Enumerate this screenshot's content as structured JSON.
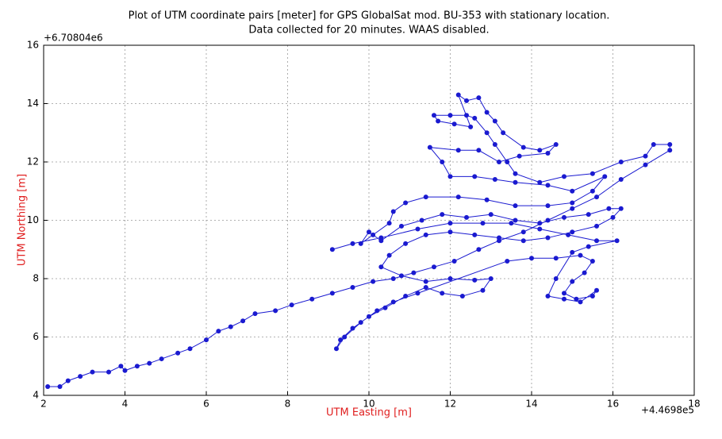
{
  "chart_data": {
    "type": "line",
    "title": "Plot of UTM  coordinate pairs [meter] for GPS GlobalSat mod. BU-353 with stationary location.",
    "subtitle": "Data collected for 20 minutes. WAAS disabled.",
    "x_label": "UTM Easting [m]",
    "y_label": "UTM Northing [m]",
    "x_offset_label": "+4.4698e5",
    "y_offset_label": "+6.70804e6",
    "color": "#1a1ad0",
    "grid": true,
    "xlim": [
      2,
      18
    ],
    "ylim": [
      4,
      16
    ],
    "xticks": [
      2,
      4,
      6,
      8,
      10,
      12,
      14,
      16,
      18
    ],
    "yticks": [
      4,
      6,
      8,
      10,
      12,
      14,
      16
    ],
    "x": [
      2.1,
      2.4,
      2.6,
      2.9,
      3.2,
      3.6,
      3.9,
      4.0,
      4.3,
      4.6,
      4.9,
      5.3,
      5.6,
      6.0,
      6.3,
      6.6,
      6.9,
      7.2,
      7.7,
      8.1,
      8.6,
      9.1,
      9.6,
      10.1,
      10.6,
      11.1,
      11.6,
      12.1,
      12.7,
      13.2,
      13.8,
      14.4,
      15.0,
      15.6,
      16.2,
      16.8,
      17.4,
      17.4,
      17.0,
      16.8,
      16.2,
      15.5,
      14.8,
      14.2,
      13.6,
      13.4,
      13.1,
      12.9,
      12.6,
      12.4,
      12.0,
      11.6,
      11.7,
      12.1,
      12.5,
      12.2,
      12.4,
      12.7,
      12.9,
      13.1,
      13.3,
      13.8,
      14.2,
      14.6,
      14.4,
      13.7,
      13.2,
      12.7,
      12.2,
      11.5,
      11.8,
      12.0,
      12.6,
      13.1,
      13.6,
      14.4,
      15.0,
      15.8,
      15.5,
      15.0,
      14.4,
      13.6,
      12.9,
      12.2,
      11.4,
      10.9,
      10.6,
      10.5,
      10.1,
      9.8,
      10.0,
      10.3,
      10.8,
      11.3,
      11.8,
      12.4,
      13.0,
      13.6,
      14.2,
      14.8,
      15.4,
      15.9,
      16.2,
      16.0,
      15.6,
      15.0,
      14.4,
      13.8,
      13.2,
      12.6,
      12.0,
      11.4,
      10.9,
      10.5,
      10.3,
      10.8,
      11.4,
      12.0,
      12.6,
      13.0,
      12.8,
      12.3,
      11.8,
      11.4,
      10.9,
      10.4,
      10.0,
      9.6,
      9.3,
      9.2,
      9.4,
      9.8,
      10.2,
      10.6,
      11.2,
      13.4,
      14.0,
      14.6,
      15.2,
      15.5,
      15.3,
      15.0,
      14.8,
      15.1,
      15.5,
      15.6,
      15.2,
      14.8,
      14.4,
      14.6,
      15.0,
      15.4,
      16.1,
      15.6,
      14.9,
      14.2,
      13.5,
      12.8,
      12.0,
      11.2,
      10.3,
      9.6,
      9.1
    ],
    "values": [
      4.3,
      4.3,
      4.5,
      4.65,
      4.8,
      4.8,
      5.0,
      4.85,
      5.0,
      5.1,
      5.25,
      5.45,
      5.6,
      5.9,
      6.2,
      6.35,
      6.55,
      6.8,
      6.9,
      7.1,
      7.3,
      7.5,
      7.7,
      7.9,
      8.0,
      8.2,
      8.4,
      8.6,
      9.0,
      9.3,
      9.6,
      10.0,
      10.4,
      10.8,
      11.4,
      11.9,
      12.4,
      12.6,
      12.6,
      12.2,
      12.0,
      11.6,
      11.5,
      11.3,
      11.6,
      12.0,
      12.6,
      13.0,
      13.5,
      13.6,
      13.6,
      13.6,
      13.4,
      13.3,
      13.2,
      14.3,
      14.1,
      14.2,
      13.7,
      13.4,
      13.0,
      12.5,
      12.4,
      12.6,
      12.3,
      12.2,
      12.0,
      12.4,
      12.4,
      12.5,
      12.0,
      11.5,
      11.5,
      11.4,
      11.3,
      11.2,
      11.0,
      11.5,
      11.0,
      10.6,
      10.5,
      10.5,
      10.7,
      10.8,
      10.8,
      10.6,
      10.3,
      9.9,
      9.5,
      9.2,
      9.6,
      9.3,
      9.8,
      10.0,
      10.2,
      10.1,
      10.2,
      10.0,
      9.9,
      10.1,
      10.2,
      10.4,
      10.4,
      10.1,
      9.8,
      9.6,
      9.4,
      9.3,
      9.4,
      9.5,
      9.6,
      9.5,
      9.2,
      8.8,
      8.4,
      8.1,
      7.9,
      8.0,
      7.95,
      8.0,
      7.6,
      7.4,
      7.5,
      7.7,
      7.4,
      7.0,
      6.7,
      6.3,
      5.9,
      5.6,
      6.0,
      6.5,
      6.9,
      7.2,
      7.5,
      8.6,
      8.7,
      8.7,
      8.8,
      8.6,
      8.2,
      7.9,
      7.5,
      7.3,
      7.4,
      7.6,
      7.2,
      7.3,
      7.4,
      8.0,
      8.9,
      9.1,
      9.3,
      9.3,
      9.5,
      9.7,
      9.9,
      9.9,
      9.9,
      9.7,
      9.4,
      9.2,
      9.0
    ]
  }
}
